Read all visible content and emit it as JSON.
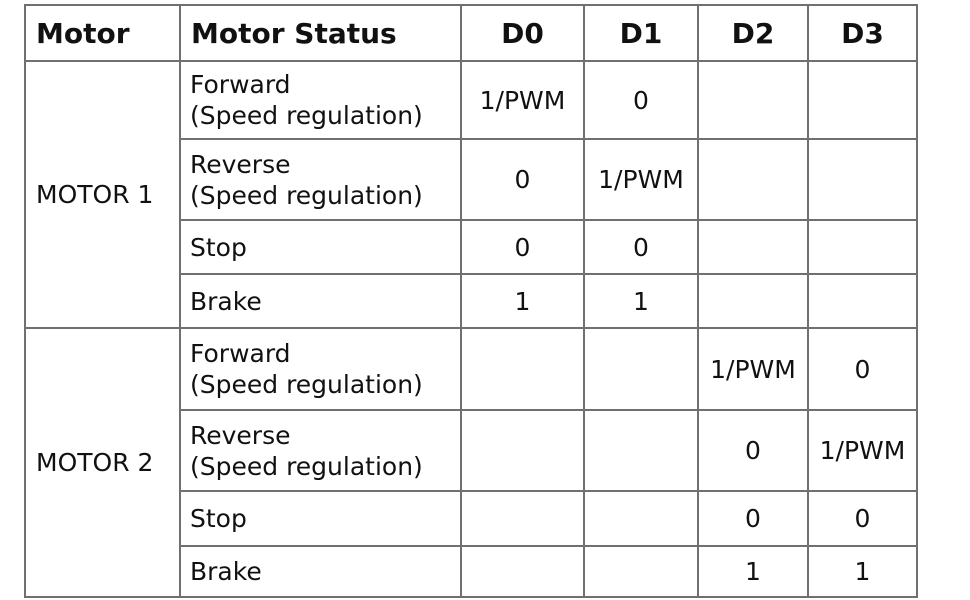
{
  "headers": [
    "Motor",
    "Motor Status",
    "D0",
    "D1",
    "D2",
    "D3"
  ],
  "groups": [
    {
      "motor": "MOTOR 1",
      "rows": [
        {
          "status": [
            "Forward",
            "(Speed regulation)"
          ],
          "values": [
            "1/PWM",
            "0",
            "",
            ""
          ]
        },
        {
          "status": [
            "Reverse",
            "(Speed regulation)"
          ],
          "values": [
            "0",
            "1/PWM",
            "",
            ""
          ]
        },
        {
          "status": [
            "Stop"
          ],
          "values": [
            "0",
            "0",
            "",
            ""
          ]
        },
        {
          "status": [
            "Brake"
          ],
          "values": [
            "1",
            "1",
            "",
            ""
          ]
        }
      ]
    },
    {
      "motor": "MOTOR 2",
      "rows": [
        {
          "status": [
            "Forward",
            "(Speed regulation)"
          ],
          "values": [
            "",
            "",
            "1/PWM",
            "0"
          ]
        },
        {
          "status": [
            "Reverse",
            "(Speed regulation)"
          ],
          "values": [
            "",
            "",
            "0",
            "1/PWM"
          ]
        },
        {
          "status": [
            "Stop"
          ],
          "values": [
            "",
            "",
            "0",
            "0"
          ]
        },
        {
          "status": [
            "Brake"
          ],
          "values": [
            "",
            "",
            "1",
            "1"
          ]
        }
      ]
    }
  ]
}
